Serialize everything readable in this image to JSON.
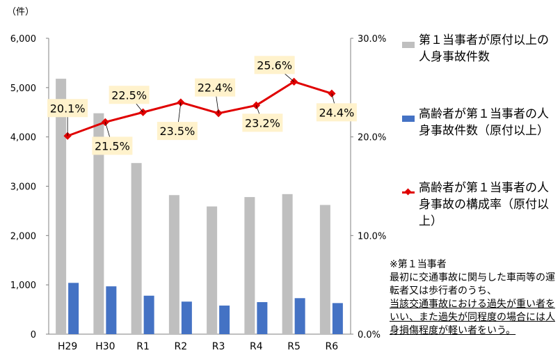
{
  "unit_label": "（件）",
  "legend": {
    "series1": "第１当事者が原付以上の人身事故件数",
    "series2": "高齢者が第１当事者の人身事故件数（原付以上）",
    "series3": "高齢者が第１当事者の人身事故の構成率（原付以上）"
  },
  "note": {
    "title": "※第１当事者",
    "line1": "最初に交通事故に関与した車両等の運転者又は歩行者のうち、",
    "line2": "当該交通事故における過失が重い者をいい、また過失が同程度の場合には人身損傷程度が軽い者をいう。"
  },
  "chart_data": {
    "type": "bar",
    "categories": [
      "H29",
      "H30",
      "R1",
      "R2",
      "R3",
      "R4",
      "R5",
      "R6"
    ],
    "series": [
      {
        "name": "第１当事者が原付以上の人身事故件数",
        "type": "bar",
        "axis": "left",
        "values": [
          5180,
          4480,
          3470,
          2820,
          2590,
          2780,
          2840,
          2620
        ],
        "color": "#bfbfbf"
      },
      {
        "name": "高齢者が第１当事者の人身事故件数（原付以上）",
        "type": "bar",
        "axis": "left",
        "values": [
          1040,
          970,
          780,
          660,
          580,
          650,
          730,
          630
        ],
        "color": "#4472c4"
      },
      {
        "name": "高齢者が第１当事者の人身事故の構成率（原付以上）",
        "type": "line",
        "axis": "right",
        "values": [
          20.1,
          21.5,
          22.5,
          23.5,
          22.4,
          23.2,
          25.6,
          24.4
        ],
        "color": "#e00000",
        "labels": [
          "20.1%",
          "21.5%",
          "22.5%",
          "23.5%",
          "22.4%",
          "23.2%",
          "25.6%",
          "24.4%"
        ]
      }
    ],
    "y_left": {
      "min": 0,
      "max": 6000,
      "ticks": [
        "0",
        "1,000",
        "2,000",
        "3,000",
        "4,000",
        "5,000",
        "6,000"
      ]
    },
    "y_right": {
      "min": 0,
      "max": 30,
      "ticks": [
        "0.0%",
        "10.0%",
        "20.0%",
        "30.0%"
      ]
    },
    "grid": false,
    "legend_position": "right",
    "label_color": "#fff2cc"
  }
}
